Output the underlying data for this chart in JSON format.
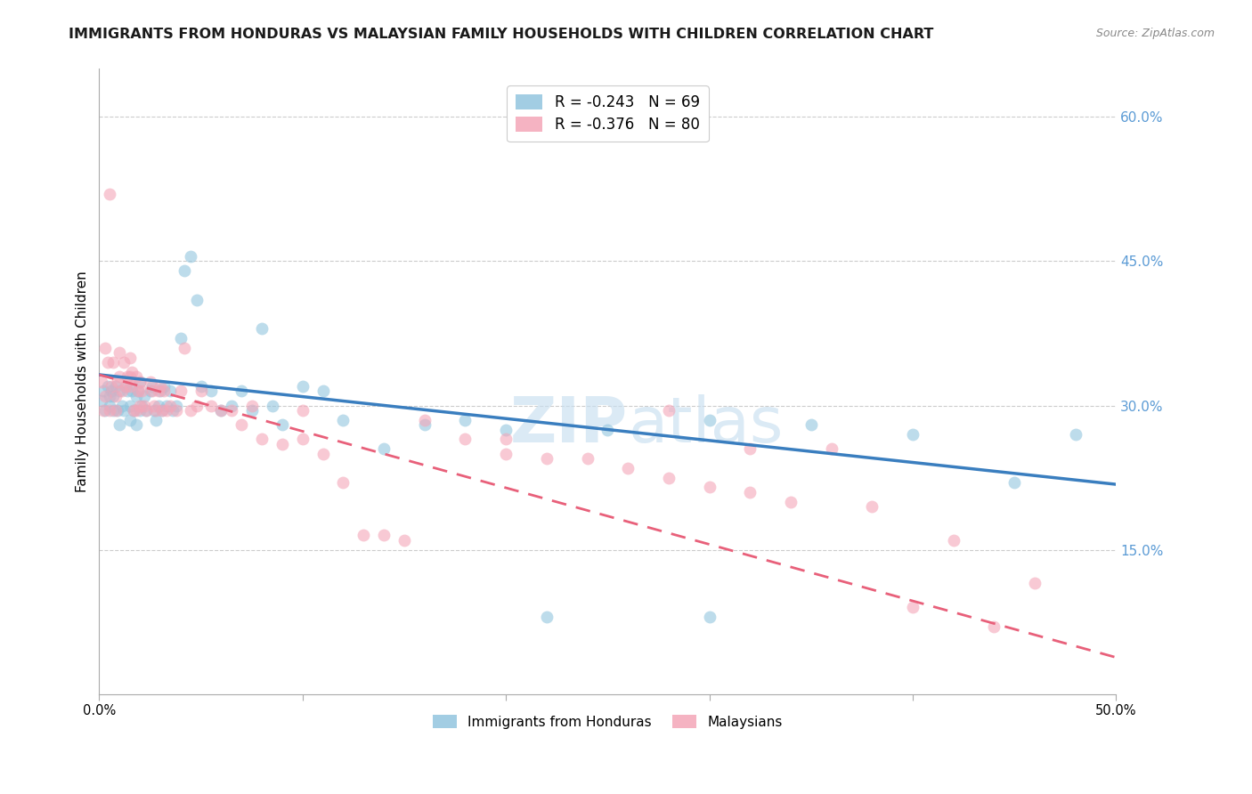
{
  "title": "IMMIGRANTS FROM HONDURAS VS MALAYSIAN FAMILY HOUSEHOLDS WITH CHILDREN CORRELATION CHART",
  "source": "Source: ZipAtlas.com",
  "ylabel": "Family Households with Children",
  "legend_label1": "Immigrants from Honduras",
  "legend_label2": "Malaysians",
  "blue_color": "#92c5de",
  "pink_color": "#f4a6b8",
  "blue_line_color": "#3a7ebf",
  "pink_line_color": "#e8607a",
  "blue_R": -0.243,
  "pink_R": -0.376,
  "blue_N": 69,
  "pink_N": 80,
  "x_lim": [
    0.0,
    0.5
  ],
  "y_lim": [
    0.0,
    0.65
  ],
  "blue_scatter_x": [
    0.001,
    0.002,
    0.003,
    0.004,
    0.005,
    0.005,
    0.006,
    0.007,
    0.007,
    0.008,
    0.009,
    0.01,
    0.01,
    0.011,
    0.012,
    0.013,
    0.014,
    0.015,
    0.015,
    0.016,
    0.017,
    0.018,
    0.018,
    0.019,
    0.02,
    0.02,
    0.021,
    0.022,
    0.023,
    0.025,
    0.026,
    0.027,
    0.028,
    0.029,
    0.03,
    0.031,
    0.032,
    0.033,
    0.035,
    0.036,
    0.038,
    0.04,
    0.042,
    0.045,
    0.048,
    0.05,
    0.055,
    0.06,
    0.065,
    0.07,
    0.075,
    0.08,
    0.085,
    0.09,
    0.1,
    0.11,
    0.12,
    0.14,
    0.16,
    0.18,
    0.2,
    0.25,
    0.3,
    0.35,
    0.4,
    0.45,
    0.48,
    0.3,
    0.22
  ],
  "blue_scatter_y": [
    0.305,
    0.315,
    0.295,
    0.32,
    0.31,
    0.3,
    0.315,
    0.295,
    0.31,
    0.32,
    0.295,
    0.315,
    0.28,
    0.3,
    0.295,
    0.32,
    0.315,
    0.3,
    0.285,
    0.315,
    0.295,
    0.31,
    0.28,
    0.315,
    0.295,
    0.325,
    0.3,
    0.31,
    0.295,
    0.315,
    0.32,
    0.295,
    0.285,
    0.3,
    0.315,
    0.295,
    0.32,
    0.3,
    0.315,
    0.295,
    0.3,
    0.37,
    0.44,
    0.455,
    0.41,
    0.32,
    0.315,
    0.295,
    0.3,
    0.315,
    0.295,
    0.38,
    0.3,
    0.28,
    0.32,
    0.315,
    0.285,
    0.255,
    0.28,
    0.285,
    0.275,
    0.275,
    0.285,
    0.28,
    0.27,
    0.22,
    0.27,
    0.08,
    0.08
  ],
  "pink_scatter_x": [
    0.001,
    0.002,
    0.003,
    0.003,
    0.004,
    0.005,
    0.005,
    0.006,
    0.007,
    0.008,
    0.008,
    0.009,
    0.01,
    0.01,
    0.011,
    0.012,
    0.013,
    0.014,
    0.015,
    0.015,
    0.015,
    0.016,
    0.017,
    0.018,
    0.018,
    0.019,
    0.02,
    0.02,
    0.021,
    0.022,
    0.023,
    0.025,
    0.026,
    0.027,
    0.028,
    0.029,
    0.03,
    0.031,
    0.032,
    0.033,
    0.035,
    0.038,
    0.04,
    0.042,
    0.045,
    0.048,
    0.05,
    0.055,
    0.06,
    0.065,
    0.07,
    0.075,
    0.08,
    0.09,
    0.1,
    0.11,
    0.12,
    0.13,
    0.14,
    0.15,
    0.16,
    0.18,
    0.2,
    0.22,
    0.24,
    0.26,
    0.28,
    0.3,
    0.32,
    0.34,
    0.36,
    0.38,
    0.4,
    0.42,
    0.44,
    0.46,
    0.32,
    0.28,
    0.2,
    0.1
  ],
  "pink_scatter_y": [
    0.325,
    0.295,
    0.36,
    0.31,
    0.345,
    0.52,
    0.295,
    0.32,
    0.345,
    0.31,
    0.295,
    0.325,
    0.355,
    0.33,
    0.315,
    0.345,
    0.32,
    0.33,
    0.35,
    0.33,
    0.32,
    0.335,
    0.295,
    0.33,
    0.295,
    0.315,
    0.325,
    0.3,
    0.315,
    0.3,
    0.295,
    0.325,
    0.315,
    0.3,
    0.295,
    0.315,
    0.32,
    0.295,
    0.315,
    0.295,
    0.3,
    0.295,
    0.315,
    0.36,
    0.295,
    0.3,
    0.315,
    0.3,
    0.295,
    0.295,
    0.28,
    0.3,
    0.265,
    0.26,
    0.265,
    0.25,
    0.22,
    0.165,
    0.165,
    0.16,
    0.285,
    0.265,
    0.25,
    0.245,
    0.245,
    0.235,
    0.225,
    0.215,
    0.21,
    0.2,
    0.255,
    0.195,
    0.09,
    0.16,
    0.07,
    0.115,
    0.255,
    0.295,
    0.265,
    0.295
  ],
  "blue_trend_y_start": 0.332,
  "blue_trend_y_end": 0.218,
  "pink_trend_y_start": 0.332,
  "pink_trend_y_end": 0.038,
  "watermark_zip": "ZIP",
  "watermark_atlas": "atlas",
  "background_color": "#ffffff",
  "grid_color": "#cccccc",
  "right_axis_color": "#5b9bd5",
  "title_fontsize": 11.5,
  "source_fontsize": 9,
  "ylabel_fontsize": 11
}
